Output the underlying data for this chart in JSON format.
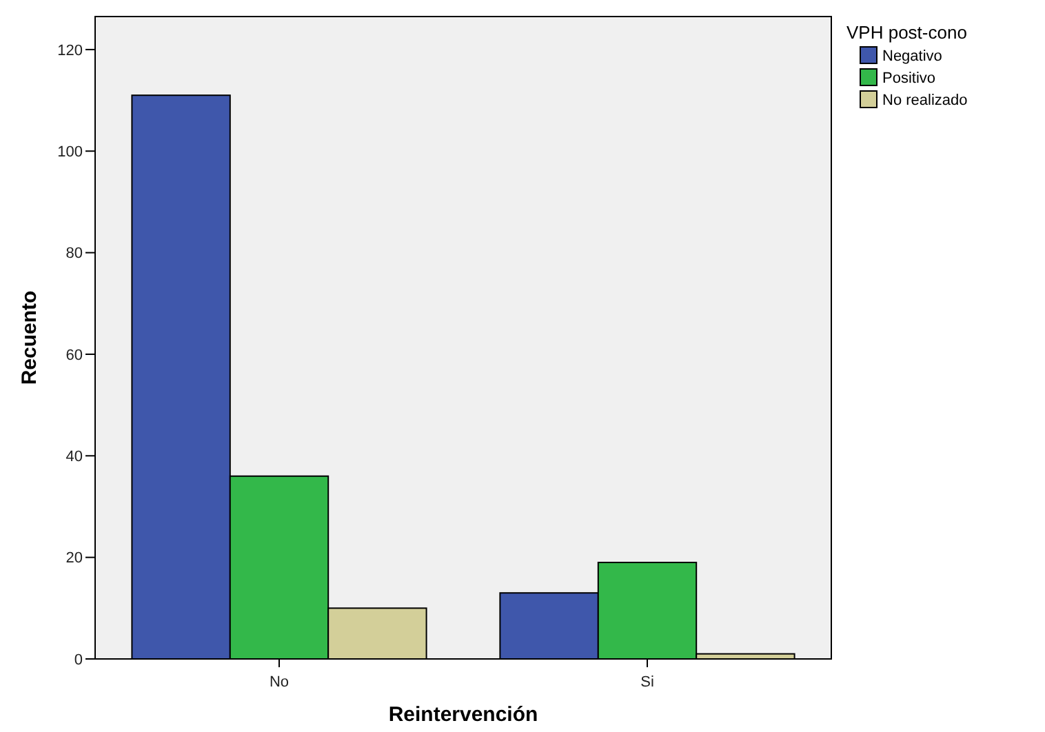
{
  "chart_data": {
    "type": "bar",
    "xlabel": "Reintervención",
    "ylabel": "Recuento",
    "legend_title": "VPH post-cono",
    "categories": [
      "No",
      "Si"
    ],
    "series": [
      {
        "name": "Negativo",
        "color": "#3f57ab",
        "values": [
          111,
          13
        ]
      },
      {
        "name": "Positivo",
        "color": "#33b84a",
        "values": [
          36,
          19
        ]
      },
      {
        "name": "No realizado",
        "color": "#d3cf99",
        "values": [
          10,
          1
        ]
      }
    ],
    "ylim": [
      0,
      126.5
    ],
    "yticks": [
      0,
      20,
      40,
      60,
      80,
      100,
      120
    ],
    "grid": false,
    "legend": "top right"
  }
}
